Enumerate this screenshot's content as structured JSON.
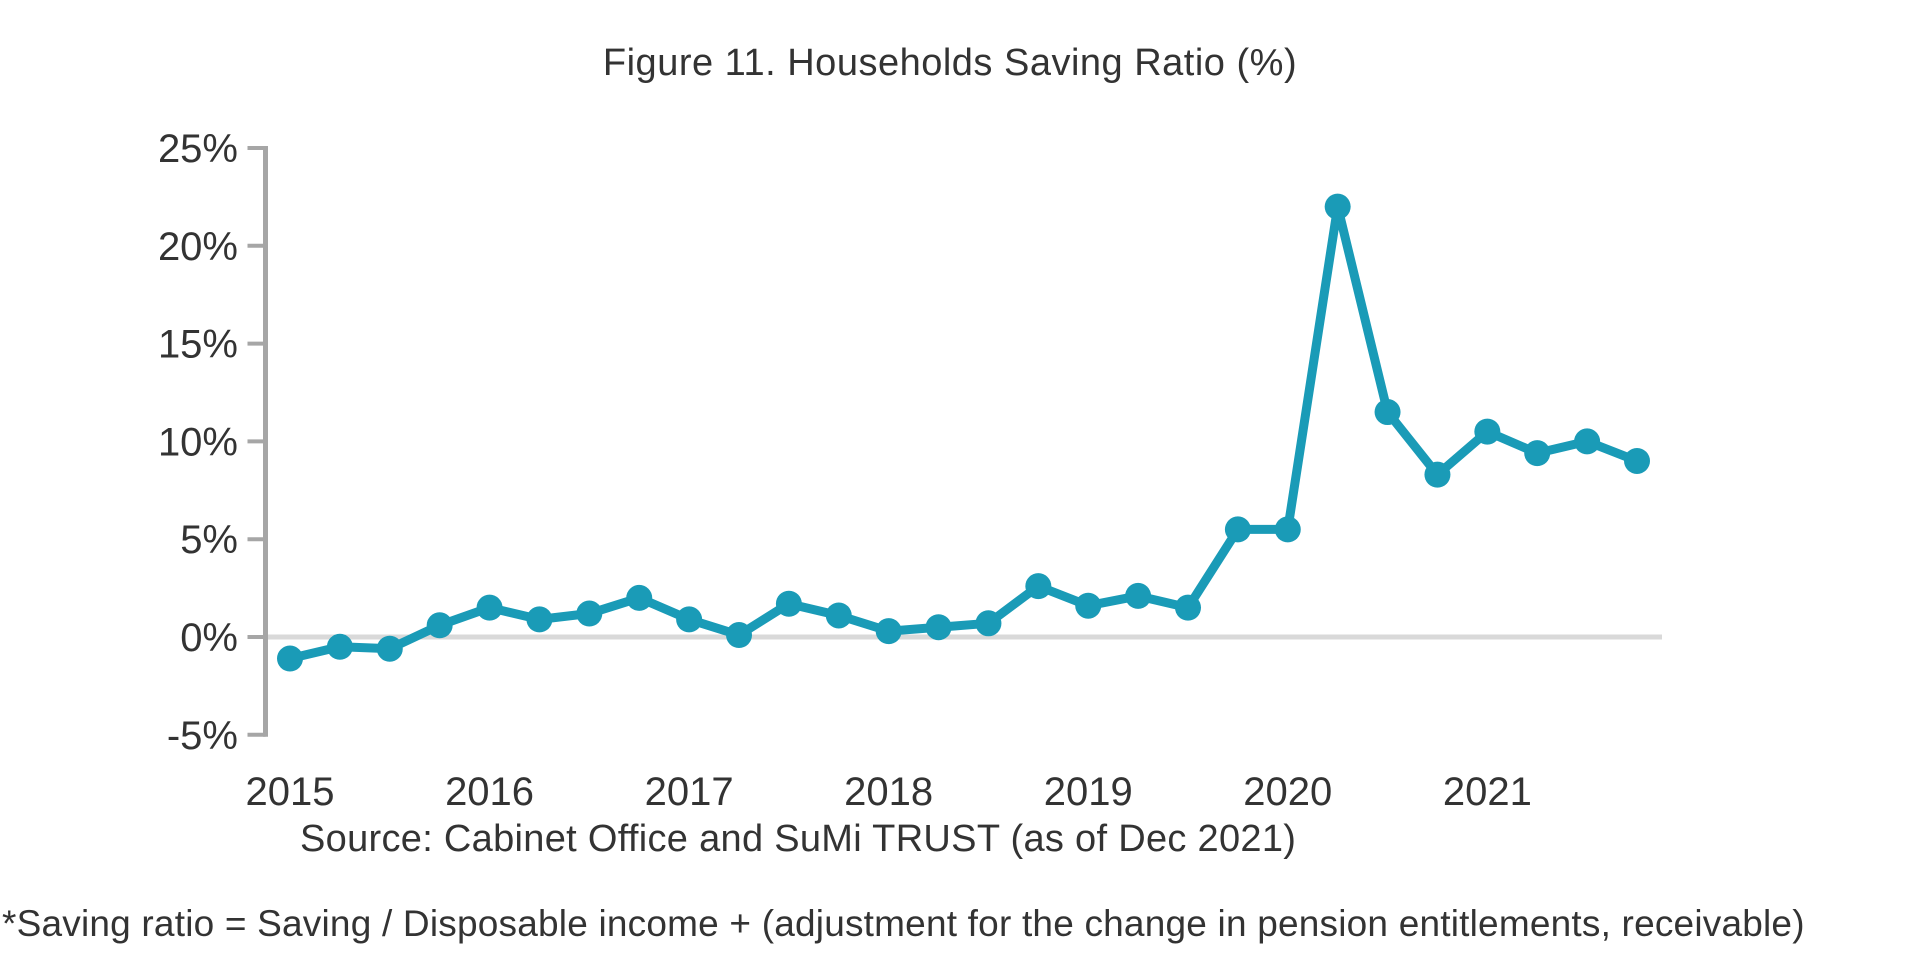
{
  "figure": {
    "title": "Figure 11. Households Saving Ratio (%)",
    "source": "Source: Cabinet Office and SuMi TRUST (as of Dec 2021)",
    "footnote": "*Saving ratio = Saving / Disposable income + (adjustment for the change in pension entitlements, receivable)"
  },
  "colors": {
    "line": "#1a9bb7",
    "marker": "#1a9bb7",
    "axis": "#a6a6a6",
    "zero_gridline": "#d9d9d9",
    "text": "#333333"
  },
  "chart_data": {
    "type": "line",
    "title": "Figure 11. Households Saving Ratio (%)",
    "series_name": "Households saving ratio (%)",
    "x": [
      "2015 Q1",
      "2015 Q2",
      "2015 Q3",
      "2015 Q4",
      "2016 Q1",
      "2016 Q2",
      "2016 Q3",
      "2016 Q4",
      "2017 Q1",
      "2017 Q2",
      "2017 Q3",
      "2017 Q4",
      "2018 Q1",
      "2018 Q2",
      "2018 Q3",
      "2018 Q4",
      "2019 Q1",
      "2019 Q2",
      "2019 Q3",
      "2019 Q4",
      "2020 Q1",
      "2020 Q2",
      "2020 Q3",
      "2020 Q4",
      "2021 Q1",
      "2021 Q2",
      "2021 Q3",
      "2021 Q4"
    ],
    "values": [
      -1.1,
      -0.5,
      -0.6,
      0.6,
      1.5,
      0.9,
      1.2,
      2.0,
      0.9,
      0.1,
      1.7,
      1.1,
      0.3,
      0.5,
      0.7,
      2.6,
      1.6,
      2.1,
      1.5,
      5.5,
      5.5,
      22.0,
      11.5,
      8.3,
      10.5,
      9.4,
      10.0,
      9.0
    ],
    "x_tick_labels": [
      "2015",
      "2016",
      "2017",
      "2018",
      "2019",
      "2020",
      "2021"
    ],
    "x_ticks_per_label": 4,
    "y_ticks": [
      25,
      20,
      15,
      10,
      5,
      0,
      -5
    ],
    "y_tick_labels": [
      "25%",
      "20%",
      "15%",
      "10%",
      "5%",
      "0%",
      "-5%"
    ],
    "ylim": [
      -5,
      25
    ],
    "xlabel": "",
    "ylabel": "",
    "grid": "horizontal zero line only",
    "legend": "none",
    "marker": "circle"
  }
}
